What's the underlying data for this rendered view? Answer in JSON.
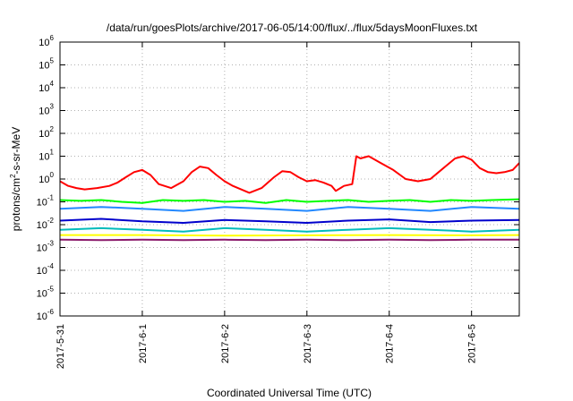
{
  "chart_data": {
    "type": "line",
    "title": "/data/run/goesPlots/archive/2017-06-05/14:00/flux/../flux/5daysMoonFluxes.txt",
    "xlabel": "Coordinated Universal Time (UTC)",
    "ylabel_main": "protons/cm",
    "ylabel_sup": "2",
    "ylabel_tail": "-s-sr-MeV",
    "y_scale": "log",
    "ylim": [
      1e-06,
      1000000.0
    ],
    "y_ticks": [
      {
        "base": "10",
        "exp": "-6"
      },
      {
        "base": "10",
        "exp": "-5"
      },
      {
        "base": "10",
        "exp": "-4"
      },
      {
        "base": "10",
        "exp": "-3"
      },
      {
        "base": "10",
        "exp": "-2"
      },
      {
        "base": "10",
        "exp": "-1"
      },
      {
        "base": "10",
        "exp": "0"
      },
      {
        "base": "10",
        "exp": "1"
      },
      {
        "base": "10",
        "exp": "2"
      },
      {
        "base": "10",
        "exp": "3"
      },
      {
        "base": "10",
        "exp": "4"
      },
      {
        "base": "10",
        "exp": "5"
      },
      {
        "base": "10",
        "exp": "6"
      }
    ],
    "x_ticks": [
      "2017-5-31",
      "2017-6-1",
      "2017-6-2",
      "2017-6-3",
      "2017-6-4",
      "2017-6-5"
    ],
    "xlim_days": [
      0,
      5.58
    ],
    "grid": true,
    "series": [
      {
        "color": "#ff0000",
        "x": [
          0,
          0.1,
          0.2,
          0.3,
          0.45,
          0.6,
          0.7,
          0.8,
          0.9,
          1.0,
          1.1,
          1.2,
          1.35,
          1.5,
          1.6,
          1.7,
          1.8,
          1.9,
          2.0,
          2.1,
          2.2,
          2.3,
          2.45,
          2.6,
          2.7,
          2.8,
          2.9,
          3.0,
          3.1,
          3.2,
          3.3,
          3.35,
          3.45,
          3.55,
          3.6,
          3.65,
          3.75,
          3.9,
          4.05,
          4.2,
          4.35,
          4.5,
          4.6,
          4.7,
          4.8,
          4.9,
          5.0,
          5.1,
          5.2,
          5.3,
          5.4,
          5.5,
          5.58
        ],
        "y": [
          0.8,
          0.5,
          0.4,
          0.35,
          0.4,
          0.5,
          0.7,
          1.2,
          2,
          2.5,
          1.5,
          0.6,
          0.4,
          0.8,
          2,
          3.5,
          3,
          1.5,
          0.8,
          0.5,
          0.35,
          0.25,
          0.4,
          1.2,
          2.2,
          2,
          1.2,
          0.8,
          0.9,
          0.7,
          0.5,
          0.3,
          0.5,
          0.6,
          10,
          8,
          10,
          5,
          2.5,
          1,
          0.8,
          1,
          2,
          4,
          8,
          10,
          7,
          3,
          2,
          1.8,
          2,
          2.5,
          5
        ]
      },
      {
        "color": "#00ff00",
        "x": [
          0,
          0.25,
          0.5,
          0.75,
          1.0,
          1.25,
          1.5,
          1.75,
          2.0,
          2.25,
          2.5,
          2.75,
          3.0,
          3.25,
          3.5,
          3.75,
          4.0,
          4.25,
          4.5,
          4.75,
          5.0,
          5.25,
          5.58
        ],
        "y": [
          0.12,
          0.11,
          0.12,
          0.1,
          0.09,
          0.12,
          0.11,
          0.12,
          0.1,
          0.11,
          0.09,
          0.12,
          0.1,
          0.11,
          0.12,
          0.1,
          0.11,
          0.12,
          0.1,
          0.12,
          0.11,
          0.12,
          0.13
        ]
      },
      {
        "color": "#00bbbb",
        "x": [
          0,
          0.5,
          1.0,
          1.5,
          2.0,
          2.5,
          3.0,
          3.5,
          4.0,
          4.5,
          5.0,
          5.58
        ],
        "y": [
          0.006,
          0.007,
          0.006,
          0.005,
          0.007,
          0.006,
          0.005,
          0.006,
          0.007,
          0.006,
          0.005,
          0.006
        ]
      },
      {
        "color": "#2288ff",
        "x": [
          0,
          0.5,
          1.0,
          1.5,
          2.0,
          2.5,
          3.0,
          3.5,
          4.0,
          4.5,
          5.0,
          5.58
        ],
        "y": [
          0.05,
          0.06,
          0.05,
          0.04,
          0.06,
          0.05,
          0.04,
          0.06,
          0.05,
          0.04,
          0.06,
          0.05
        ]
      },
      {
        "color": "#0000cc",
        "x": [
          0,
          0.5,
          1.0,
          1.5,
          2.0,
          2.5,
          3.0,
          3.5,
          4.0,
          4.5,
          5.0,
          5.58
        ],
        "y": [
          0.015,
          0.018,
          0.014,
          0.012,
          0.016,
          0.014,
          0.012,
          0.015,
          0.017,
          0.013,
          0.015,
          0.016
        ]
      },
      {
        "color": "#ffff00",
        "x": [
          0,
          1.0,
          2.0,
          3.0,
          4.0,
          5.0,
          5.58
        ],
        "y": [
          0.0035,
          0.0035,
          0.0033,
          0.0034,
          0.0035,
          0.0034,
          0.0035
        ]
      },
      {
        "color": "#8b1a6b",
        "x": [
          0,
          0.5,
          1.0,
          1.5,
          2.0,
          2.5,
          3.0,
          3.5,
          4.0,
          4.5,
          5.0,
          5.58
        ],
        "y": [
          0.0022,
          0.0021,
          0.0022,
          0.0021,
          0.0022,
          0.0021,
          0.0022,
          0.0021,
          0.0022,
          0.0021,
          0.0022,
          0.0022
        ]
      }
    ]
  }
}
